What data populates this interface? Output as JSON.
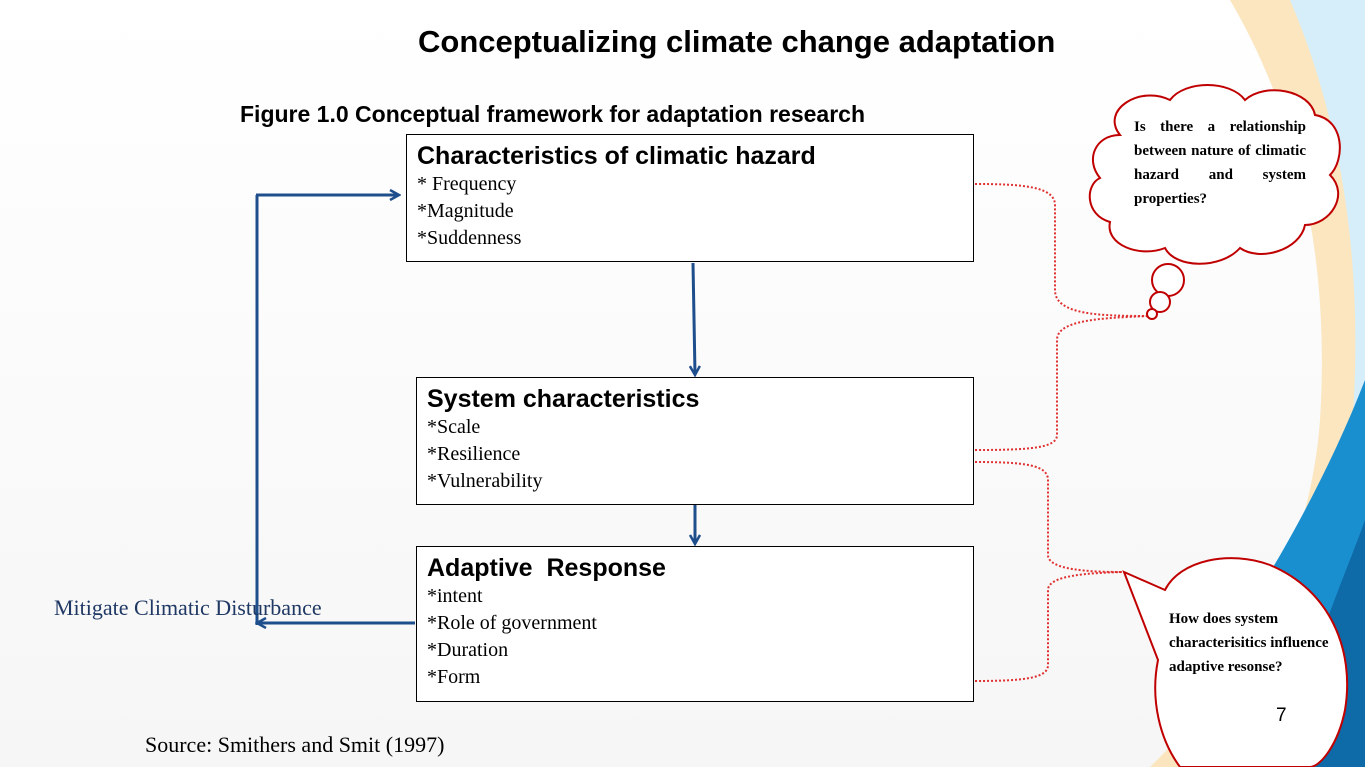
{
  "slide": {
    "title": "Conceptualizing climate change adaptation",
    "figure_caption": "Figure 1.0 Conceptual framework for adaptation research",
    "page_number": "7",
    "source": "Source: Smithers and Smit (1997)"
  },
  "boxes": {
    "hazard": {
      "title": "Characteristics of climatic hazard",
      "items": [
        "* Frequency",
        "*Magnitude",
        "*Suddenness"
      ]
    },
    "system": {
      "title": "System characteristics",
      "items": [
        "*Scale",
        "*Resilience",
        "*Vulnerability"
      ]
    },
    "adaptive": {
      "title": "Adaptive  Response",
      "items": [
        "*intent",
        "*Role of government",
        "*Duration",
        "*Form"
      ]
    }
  },
  "feedback_label": "Mitigate Climatic Disturbance",
  "thought_cloud": {
    "text": "Is there a relationship between nature of climatic hazard and system properties?"
  },
  "speech_callout": {
    "text": "How does system characterisitics influence adaptive resonse?"
  },
  "colors": {
    "arrow": "#1f4e8c",
    "dotted_connector": "#e03030",
    "callout_outline": "#c00000",
    "accent_blue": "#1a8fd0",
    "accent_orange": "#f5b342"
  }
}
